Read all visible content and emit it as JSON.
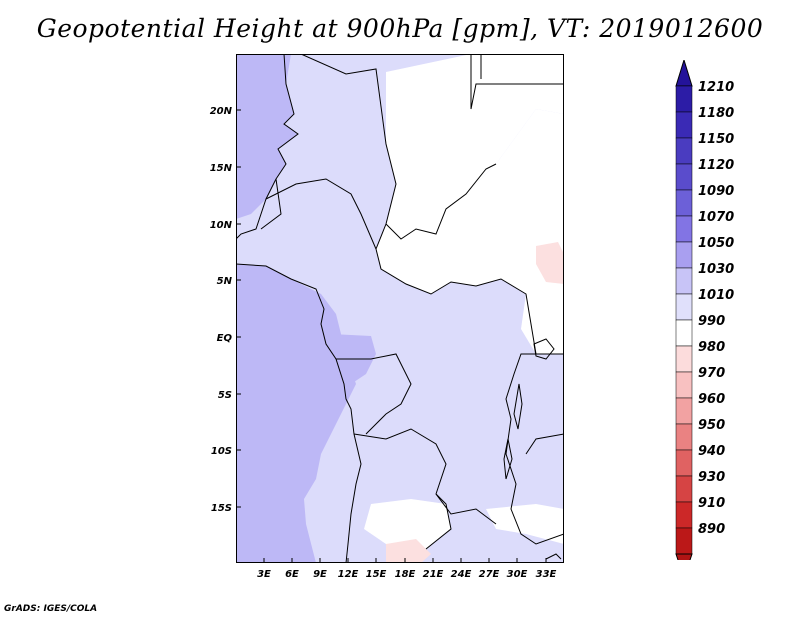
{
  "title": "Geopotential Height at 900hPa [gpm], VT: 2019012600",
  "footer": "GrADS: IGES/COLA",
  "map": {
    "lat_labels": [
      "20N",
      "15N",
      "10N",
      "5N",
      "EQ",
      "5S",
      "10S",
      "15S"
    ],
    "lon_labels": [
      "3E",
      "6E",
      "9E",
      "12E",
      "15E",
      "18E",
      "21E",
      "24E",
      "27E",
      "30E",
      "33E"
    ]
  },
  "legend": {
    "levels": [
      "1210",
      "1180",
      "1150",
      "1120",
      "1090",
      "1070",
      "1050",
      "1030",
      "1010",
      "990",
      "980",
      "970",
      "960",
      "950",
      "940",
      "930",
      "910",
      "890"
    ],
    "colors": {
      "top_arrow": "#24139a",
      "bins": [
        "#2c1ca6",
        "#3a2ab5",
        "#4a3cc0",
        "#5a4ccc",
        "#6c60d8",
        "#8274e4",
        "#a99ff0",
        "#c8c4f7",
        "#e0e0fb",
        "#ffffff",
        "#fcdcdc",
        "#f8c1c1",
        "#f2a2a2",
        "#ea8282",
        "#e06262",
        "#d64444",
        "#cc2828",
        "#bb1818"
      ],
      "bottom_arrow": "#b01414"
    }
  },
  "fills": {
    "light": "#dcdcfb",
    "medium": "#bdb8f6",
    "white": "#ffffff",
    "pink": "#fce0e0"
  }
}
